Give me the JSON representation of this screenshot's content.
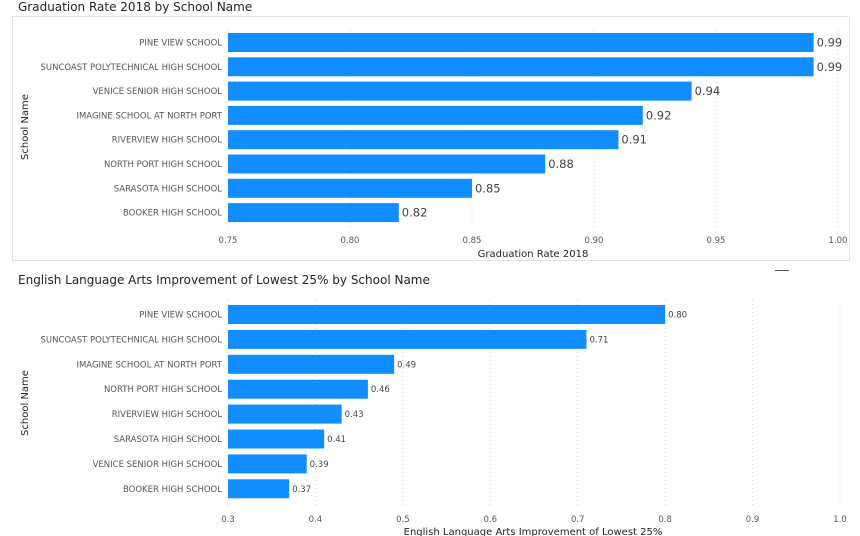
{
  "chart_data": [
    {
      "type": "bar",
      "orientation": "horizontal",
      "title": "Graduation Rate 2018 by School Name",
      "xlabel": "Graduation Rate 2018",
      "ylabel": "School Name",
      "categories": [
        "PINE VIEW SCHOOL",
        "SUNCOAST POLYTECHNICAL HIGH SCHOOL",
        "VENICE SENIOR HIGH SCHOOL",
        "IMAGINE SCHOOL AT NORTH PORT",
        "RIVERVIEW HIGH SCHOOL",
        "NORTH PORT HIGH SCHOOL",
        "SARASOTA HIGH SCHOOL",
        "BOOKER HIGH SCHOOL"
      ],
      "values": [
        0.99,
        0.99,
        0.94,
        0.92,
        0.91,
        0.88,
        0.85,
        0.82
      ],
      "data_labels": [
        "0.99",
        "0.99",
        "0.94",
        "0.92",
        "0.91",
        "0.88",
        "0.85",
        "0.82"
      ],
      "xlim": [
        0.75,
        1.0
      ],
      "x_ticks": [
        "0.75",
        "0.80",
        "0.85",
        "0.90",
        "0.95",
        "1.00"
      ],
      "x_tick_values": [
        0.75,
        0.8,
        0.85,
        0.9,
        0.95,
        1.0
      ],
      "grid": true,
      "bar_color": "#118DFF"
    },
    {
      "type": "bar",
      "orientation": "horizontal",
      "title": "English Language Arts Improvement of Lowest 25% by School Name",
      "xlabel": "English Language Arts Improvement of Lowest 25%",
      "ylabel": "School Name",
      "categories": [
        "PINE VIEW SCHOOL",
        "SUNCOAST POLYTECHNICAL HIGH SCHOOL",
        "IMAGINE SCHOOL AT NORTH PORT",
        "NORTH PORT HIGH SCHOOL",
        "RIVERVIEW HIGH SCHOOL",
        "SARASOTA HIGH SCHOOL",
        "VENICE SENIOR HIGH SCHOOL",
        "BOOKER HIGH SCHOOL"
      ],
      "values": [
        0.8,
        0.71,
        0.49,
        0.46,
        0.43,
        0.41,
        0.39,
        0.37
      ],
      "data_labels": [
        "0.80",
        "0.71",
        "0.49",
        "0.46",
        "0.43",
        "0.41",
        "0.39",
        "0.37"
      ],
      "xlim": [
        0.3,
        1.0
      ],
      "x_ticks": [
        "0.3",
        "0.4",
        "0.5",
        "0.6",
        "0.7",
        "0.8",
        "0.9",
        "1.0"
      ],
      "x_tick_values": [
        0.3,
        0.4,
        0.5,
        0.6,
        0.7,
        0.8,
        0.9,
        1.0
      ],
      "grid": true,
      "bar_color": "#118DFF"
    }
  ]
}
